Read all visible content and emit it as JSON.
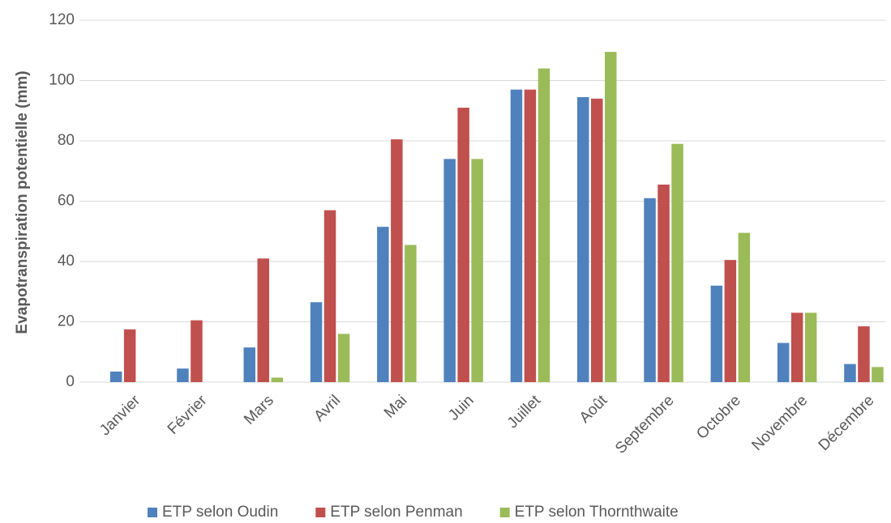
{
  "chart_data": {
    "type": "bar",
    "y_label": "Evapotranspiration  potentielle (mm)",
    "categories": [
      "Janvier",
      "Février",
      "Mars",
      "Avril",
      "Mai",
      "Juin",
      "Juillet",
      "Août",
      "Septembre",
      "Octobre",
      "Novembre",
      "Décembre"
    ],
    "series": [
      {
        "name": "ETP selon Oudin",
        "color": "#4f81bd",
        "values": [
          3.5,
          4.5,
          11.5,
          26.5,
          51.5,
          74,
          97,
          94.5,
          61,
          32,
          13,
          6
        ]
      },
      {
        "name": "ETP selon Penman",
        "color": "#c0504d",
        "values": [
          17.5,
          20.5,
          41,
          57,
          80.5,
          91,
          97,
          94,
          65.5,
          40.5,
          23,
          18.5
        ]
      },
      {
        "name": "ETP selon Thornthwaite",
        "color": "#9bbb59",
        "values": [
          0,
          0,
          1.5,
          16,
          45.5,
          74,
          104,
          109.5,
          79,
          49.5,
          23,
          5
        ]
      }
    ],
    "ylim": [
      0,
      120
    ],
    "yticks": [
      0,
      20,
      40,
      60,
      80,
      100,
      120
    ],
    "grid": true,
    "legend": "bottom"
  }
}
